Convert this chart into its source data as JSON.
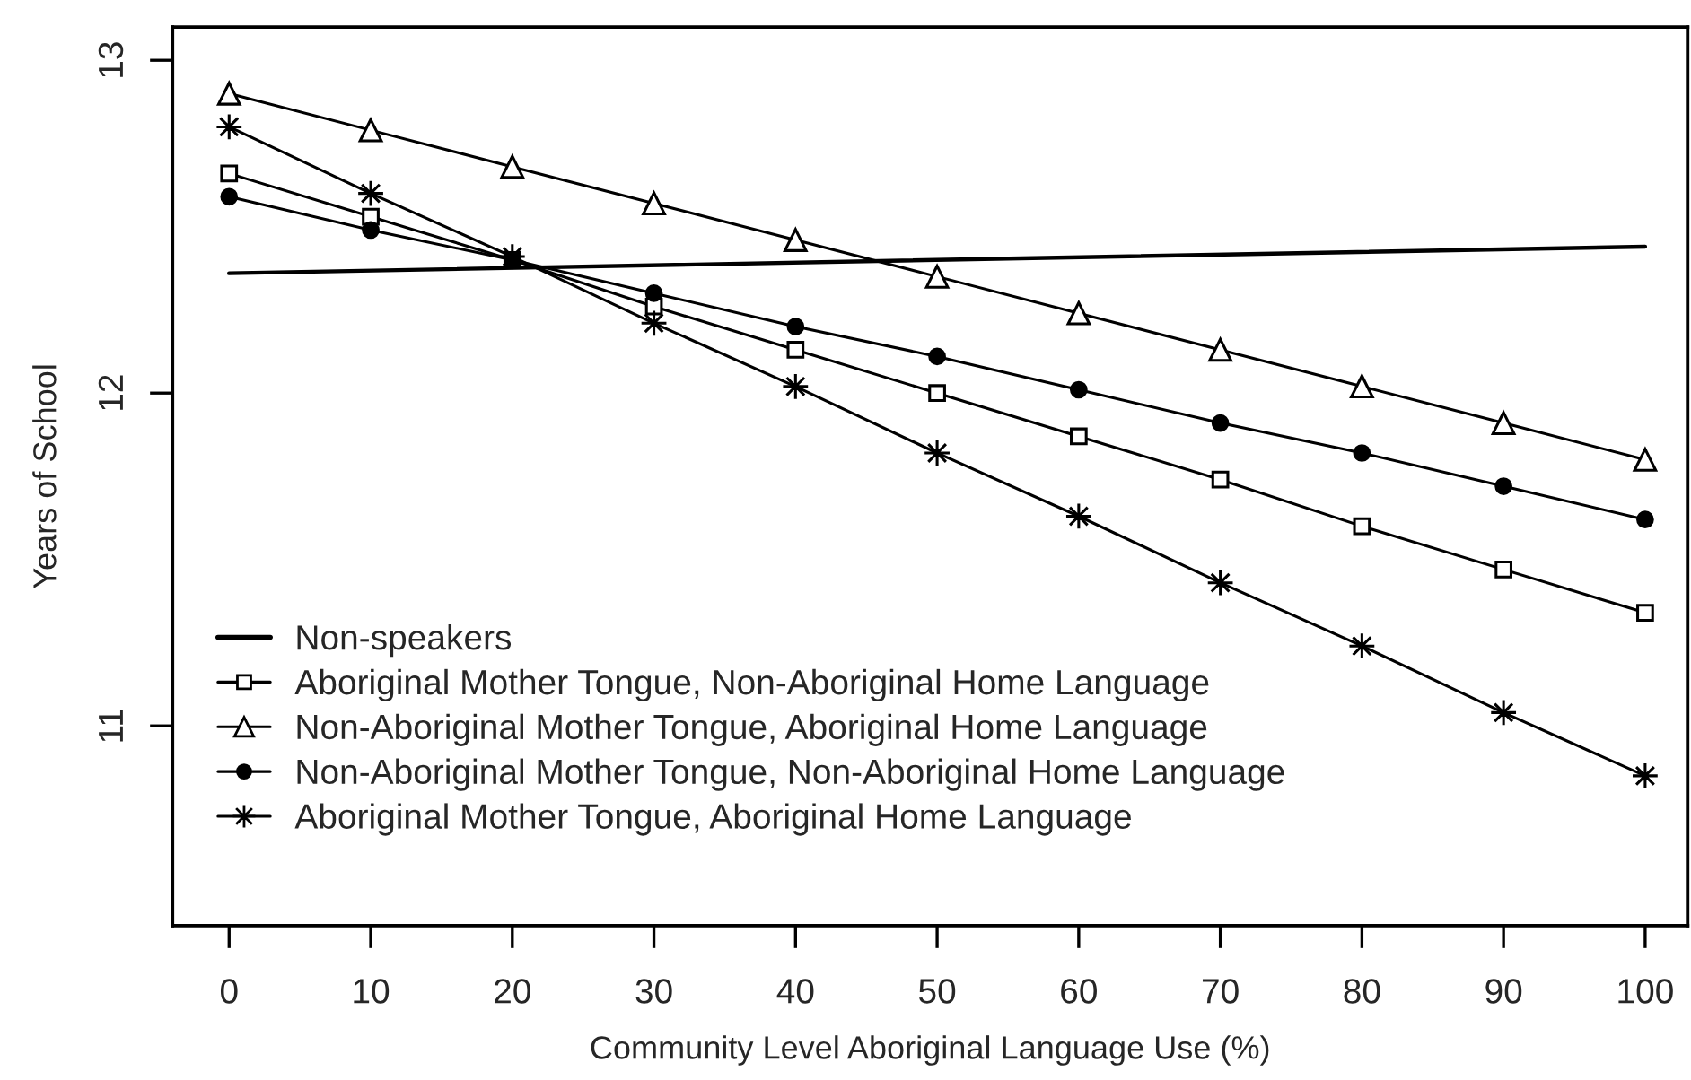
{
  "chart_data": {
    "type": "line",
    "xlabel": "Community Level Aboriginal Language Use (%)",
    "ylabel": "Years of School",
    "x": [
      0,
      10,
      20,
      30,
      40,
      50,
      60,
      70,
      80,
      90,
      100
    ],
    "xlim": [
      -4,
      103
    ],
    "xticks": [
      0,
      10,
      20,
      30,
      40,
      50,
      60,
      70,
      80,
      90,
      100
    ],
    "ylim": [
      10.4,
      13.1
    ],
    "yticks": [
      11,
      12,
      13
    ],
    "grid": false,
    "legend": "bottom left",
    "series": [
      {
        "name": "Non-speakers",
        "color": "#000000",
        "marker": "none",
        "x": [
          0,
          100
        ],
        "values": [
          12.36,
          12.44
        ]
      },
      {
        "name": "Aboriginal Mother Tongue, Non-Aboriginal Home Language",
        "color": "#000000",
        "marker": "square",
        "values": [
          12.66,
          12.53,
          12.4,
          12.26,
          12.13,
          12.0,
          11.87,
          11.74,
          11.6,
          11.47,
          11.34
        ]
      },
      {
        "name": "Non-Aboriginal Mother Tongue, Aboriginal Home Language",
        "color": "#000000",
        "marker": "triangle",
        "values": [
          12.9,
          12.79,
          12.68,
          12.57,
          12.46,
          12.35,
          12.24,
          12.13,
          12.02,
          11.91,
          11.8
        ]
      },
      {
        "name": "Non-Aboriginal Mother Tongue, Non-Aboriginal Home Language",
        "color": "#000000",
        "marker": "circle",
        "values": [
          12.59,
          12.49,
          12.4,
          12.3,
          12.2,
          12.11,
          12.01,
          11.91,
          11.82,
          11.72,
          11.62
        ]
      },
      {
        "name": "Aboriginal Mother Tongue, Aboriginal Home Language",
        "color": "#000000",
        "marker": "star",
        "values": [
          12.8,
          12.6,
          12.41,
          12.21,
          12.02,
          11.82,
          11.63,
          11.43,
          11.24,
          11.04,
          10.85
        ]
      }
    ]
  }
}
